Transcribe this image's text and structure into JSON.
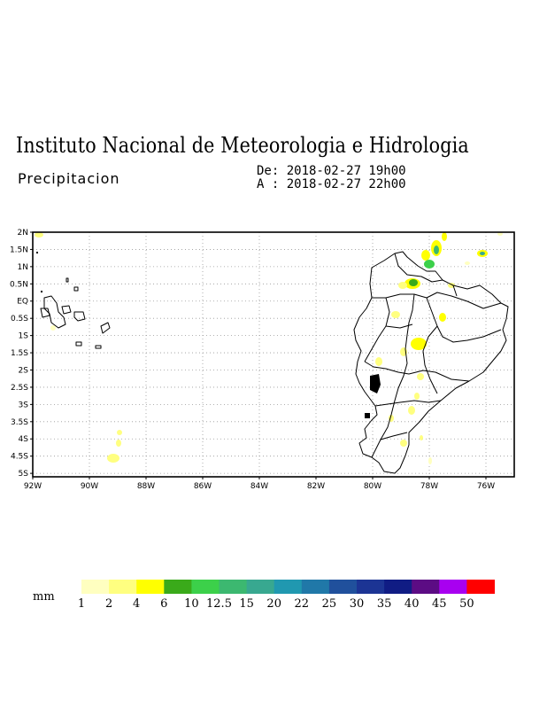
{
  "header": {
    "title": "Instituto Nacional de Meteorologia e Hidrologia",
    "subtitle": "Precipitacion",
    "date_from": "De: 2018-02-27 19h00",
    "date_to": "A : 2018-02-27 22h00"
  },
  "map": {
    "lon_ticks": [
      "92W",
      "90W",
      "88W",
      "86W",
      "84W",
      "82W",
      "80W",
      "78W",
      "76W"
    ],
    "lat_ticks": [
      "2N",
      "1.5N",
      "1N",
      "0.5N",
      "EQ",
      "0.5S",
      "1S",
      "1.5S",
      "2S",
      "2.5S",
      "3S",
      "3.5S",
      "4S",
      "4.5S",
      "5S"
    ],
    "lon_range": [
      -92,
      -75
    ],
    "lat_range": [
      -5.1,
      2
    ],
    "grid": "dotted"
  },
  "legend": {
    "unit": "mm",
    "colors": [
      "#ffffc0",
      "#ffff80",
      "#ffff00",
      "#3aaa1a",
      "#3cd04a",
      "#3cb870",
      "#38a890",
      "#2098b0",
      "#2078a8",
      "#20509c",
      "#1c3494",
      "#101c84",
      "#5c0c84",
      "#a800f0",
      "#ff0000"
    ],
    "labels": [
      "1",
      "2",
      "4",
      "6",
      "10",
      "12.5",
      "15",
      "20",
      "22",
      "25",
      "30",
      "35",
      "40",
      "45",
      "50"
    ]
  }
}
